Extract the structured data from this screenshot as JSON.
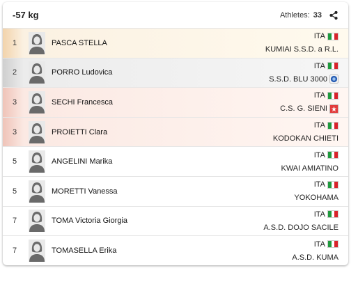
{
  "header": {
    "category": "-57 kg",
    "athletes_label": "Athletes:",
    "athletes_count": "33",
    "share_icon": "share-icon"
  },
  "colors": {
    "ita_green": "#1f9a3e",
    "ita_white": "#ffffff",
    "ita_red": "#d8232a"
  },
  "athletes": [
    {
      "rank": "1",
      "name": "PASCA STELLA",
      "nation": "ITA",
      "club": "KUMIAI S.S.D. a R.L.",
      "club_icon": "",
      "medal": "gold"
    },
    {
      "rank": "2",
      "name": "PORRO Ludovica",
      "nation": "ITA",
      "club": "S.S.D. BLU 3000",
      "club_icon": "club-logo-blue-icon",
      "medal": "silver"
    },
    {
      "rank": "3",
      "name": "SECHI Francesca",
      "nation": "ITA",
      "club": "C.S. G. SIENI",
      "club_icon": "club-logo-red-icon",
      "medal": "bronze"
    },
    {
      "rank": "3",
      "name": "PROIETTI Clara",
      "nation": "ITA",
      "club": "KODOKAN CHIETI",
      "club_icon": "",
      "medal": "bronze"
    },
    {
      "rank": "5",
      "name": "ANGELINI Marika",
      "nation": "ITA",
      "club": "KWAI AMIATINO",
      "club_icon": "",
      "medal": ""
    },
    {
      "rank": "5",
      "name": "MORETTI Vanessa",
      "nation": "ITA",
      "club": "YOKOHAMA",
      "club_icon": "",
      "medal": ""
    },
    {
      "rank": "7",
      "name": "TOMA Victoria Giorgia",
      "nation": "ITA",
      "club": "A.S.D. DOJO SACILE",
      "club_icon": "",
      "medal": ""
    },
    {
      "rank": "7",
      "name": "TOMASELLA Erika",
      "nation": "ITA",
      "club": "A.S.D. KUMA",
      "club_icon": "",
      "medal": ""
    }
  ]
}
